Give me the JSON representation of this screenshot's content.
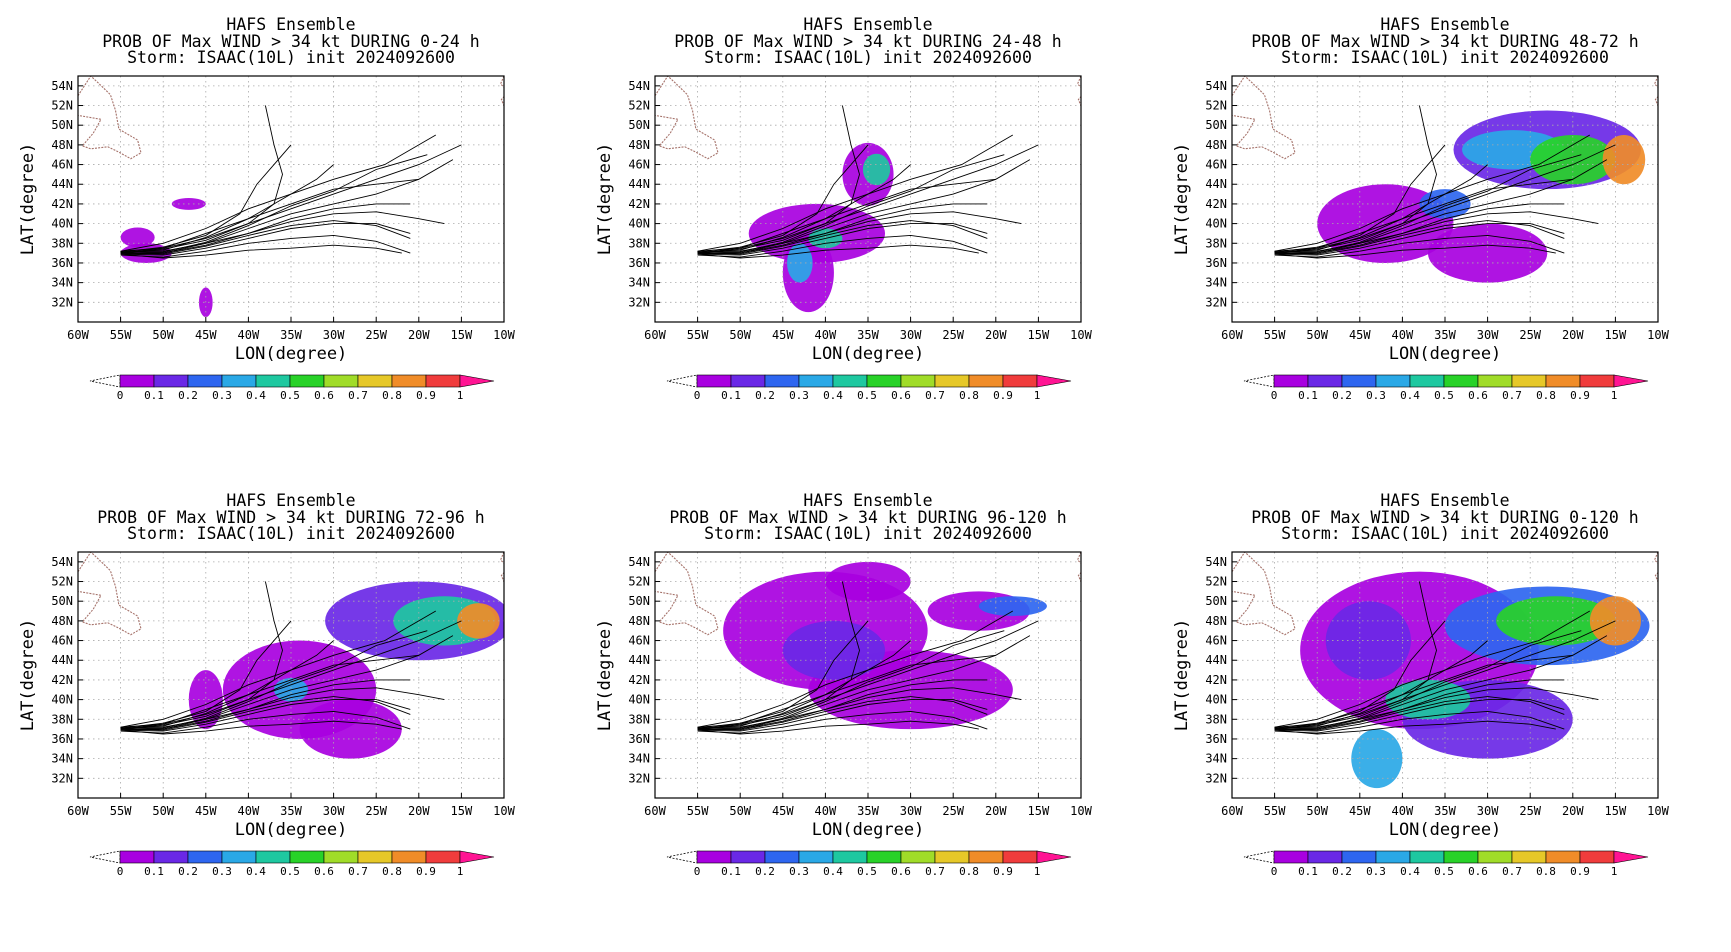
{
  "figure": {
    "model": "HAFS Ensemble",
    "storm_line": "Storm: ISAAC(10L) init 2024092600",
    "xlabel": "LON(degree)",
    "ylabel": "LAT(degree)",
    "lon_ticks": [
      "60W",
      "55W",
      "50W",
      "45W",
      "40W",
      "35W",
      "30W",
      "25W",
      "20W",
      "15W",
      "10W"
    ],
    "lat_ticks": [
      "54N",
      "52N",
      "50N",
      "48N",
      "46N",
      "44N",
      "42N",
      "40N",
      "38N",
      "36N",
      "34N",
      "32N"
    ],
    "colorbar_labels": [
      "0",
      "0.1",
      "0.2",
      "0.3",
      "0.4",
      "0.5",
      "0.6",
      "0.7",
      "0.8",
      "0.9",
      "1"
    ],
    "colors": {
      "bins": [
        "#a800e0",
        "#6a28e6",
        "#2e66f0",
        "#2aa8e6",
        "#1ec8a0",
        "#28d228",
        "#a0dc28",
        "#e6c828",
        "#f08c28",
        "#f03c3c"
      ],
      "over": "#ff1493",
      "coast": "#a5726a",
      "tracks": "#000000",
      "grid": "#aaaaaa"
    }
  },
  "chart_data": [
    {
      "type": "heatmap",
      "title": "HAFS Ensemble",
      "subtitle": "PROB OF Max WIND > 34 kt DURING  0-24 h",
      "storm": "Storm: ISAAC(10L) init 2024092600",
      "xlabel": "LON(degree)",
      "ylabel": "LAT(degree)",
      "xlim": [
        -60,
        -10
      ],
      "ylim": [
        30,
        55
      ],
      "blobs": [
        {
          "lon": -52,
          "lat": 37,
          "rx": 3,
          "ry": 1,
          "p": 0.05
        },
        {
          "lon": -53,
          "lat": 38.6,
          "rx": 2,
          "ry": 1,
          "p": 0.05
        },
        {
          "lon": -47,
          "lat": 42,
          "rx": 2,
          "ry": 0.6,
          "p": 0.05
        },
        {
          "lon": -45,
          "lat": 32,
          "rx": 0.8,
          "ry": 1.5,
          "p": 0.05
        }
      ]
    },
    {
      "type": "heatmap",
      "title": "HAFS Ensemble",
      "subtitle": "PROB OF Max WIND > 34 kt DURING 24-48 h",
      "storm": "Storm: ISAAC(10L) init 2024092600",
      "xlabel": "LON(degree)",
      "ylabel": "LAT(degree)",
      "xlim": [
        -60,
        -10
      ],
      "ylim": [
        30,
        55
      ],
      "blobs": [
        {
          "lon": -41,
          "lat": 39,
          "rx": 8,
          "ry": 3,
          "p": 0.05
        },
        {
          "lon": -42,
          "lat": 35,
          "rx": 3,
          "ry": 4,
          "p": 0.05
        },
        {
          "lon": -35,
          "lat": 45,
          "rx": 3,
          "ry": 3.2,
          "p": 0.08
        },
        {
          "lon": -34,
          "lat": 45.5,
          "rx": 1.6,
          "ry": 1.6,
          "p": 0.45
        },
        {
          "lon": -43,
          "lat": 36,
          "rx": 1.5,
          "ry": 2,
          "p": 0.3
        },
        {
          "lon": -40,
          "lat": 38.5,
          "rx": 2,
          "ry": 1,
          "p": 0.45
        }
      ]
    },
    {
      "type": "heatmap",
      "title": "HAFS Ensemble",
      "subtitle": "PROB OF Max WIND > 34 kt DURING 48-72 h",
      "storm": "Storm: ISAAC(10L) init 2024092600",
      "xlabel": "LON(degree)",
      "ylabel": "LAT(degree)",
      "xlim": [
        -60,
        -10
      ],
      "ylim": [
        30,
        55
      ],
      "blobs": [
        {
          "lon": -42,
          "lat": 40,
          "rx": 8,
          "ry": 4,
          "p": 0.05
        },
        {
          "lon": -30,
          "lat": 37,
          "rx": 7,
          "ry": 3,
          "p": 0.05
        },
        {
          "lon": -23,
          "lat": 47.5,
          "rx": 11,
          "ry": 4,
          "p": 0.12
        },
        {
          "lon": -27,
          "lat": 47.5,
          "rx": 6,
          "ry": 2,
          "p": 0.3
        },
        {
          "lon": -20,
          "lat": 46.5,
          "rx": 5,
          "ry": 2.5,
          "p": 0.5
        },
        {
          "lon": -14,
          "lat": 46.5,
          "rx": 2.5,
          "ry": 2.5,
          "p": 0.8
        },
        {
          "lon": -35,
          "lat": 42,
          "rx": 3,
          "ry": 1.5,
          "p": 0.25
        }
      ]
    },
    {
      "type": "heatmap",
      "title": "HAFS Ensemble",
      "subtitle": "PROB OF Max WIND > 34 kt DURING 72-96 h",
      "storm": "Storm: ISAAC(10L) init 2024092600",
      "xlabel": "LON(degree)",
      "ylabel": "LAT(degree)",
      "xlim": [
        -60,
        -10
      ],
      "ylim": [
        30,
        55
      ],
      "blobs": [
        {
          "lon": -34,
          "lat": 41,
          "rx": 9,
          "ry": 5,
          "p": 0.05
        },
        {
          "lon": -28,
          "lat": 37,
          "rx": 6,
          "ry": 3,
          "p": 0.05
        },
        {
          "lon": -20,
          "lat": 48,
          "rx": 11,
          "ry": 4,
          "p": 0.12
        },
        {
          "lon": -17,
          "lat": 48,
          "rx": 6,
          "ry": 2.5,
          "p": 0.45
        },
        {
          "lon": -13,
          "lat": 48,
          "rx": 2.5,
          "ry": 1.8,
          "p": 0.8
        },
        {
          "lon": -35,
          "lat": 41,
          "rx": 2,
          "ry": 1.2,
          "p": 0.3
        },
        {
          "lon": -45,
          "lat": 40,
          "rx": 2,
          "ry": 3,
          "p": 0.05
        }
      ]
    },
    {
      "type": "heatmap",
      "title": "HAFS Ensemble",
      "subtitle": "PROB OF Max WIND > 34 kt DURING 96-120 h",
      "storm": "Storm: ISAAC(10L) init 2024092600",
      "xlabel": "LON(degree)",
      "ylabel": "LAT(degree)",
      "xlim": [
        -60,
        -10
      ],
      "ylim": [
        30,
        55
      ],
      "blobs": [
        {
          "lon": -40,
          "lat": 47,
          "rx": 12,
          "ry": 6,
          "p": 0.05
        },
        {
          "lon": -30,
          "lat": 41,
          "rx": 12,
          "ry": 4,
          "p": 0.05
        },
        {
          "lon": -22,
          "lat": 49,
          "rx": 6,
          "ry": 2,
          "p": 0.05
        },
        {
          "lon": -39,
          "lat": 45,
          "rx": 6,
          "ry": 3,
          "p": 0.15
        },
        {
          "lon": -18,
          "lat": 49.5,
          "rx": 4,
          "ry": 1,
          "p": 0.25
        },
        {
          "lon": -35,
          "lat": 52,
          "rx": 5,
          "ry": 2,
          "p": 0.05
        }
      ]
    },
    {
      "type": "heatmap",
      "title": "HAFS Ensemble",
      "subtitle": "PROB OF Max WIND > 34 kt DURING 0-120 h",
      "storm": "Storm: ISAAC(10L) init 2024092600",
      "xlabel": "LON(degree)",
      "ylabel": "LAT(degree)",
      "xlim": [
        -60,
        -10
      ],
      "ylim": [
        30,
        55
      ],
      "blobs": [
        {
          "lon": -38,
          "lat": 45,
          "rx": 14,
          "ry": 8,
          "p": 0.05
        },
        {
          "lon": -30,
          "lat": 38,
          "rx": 10,
          "ry": 4,
          "p": 0.1
        },
        {
          "lon": -23,
          "lat": 47.5,
          "rx": 12,
          "ry": 4,
          "p": 0.2
        },
        {
          "lon": -22,
          "lat": 48,
          "rx": 7,
          "ry": 2.5,
          "p": 0.5
        },
        {
          "lon": -15,
          "lat": 48,
          "rx": 3,
          "ry": 2.5,
          "p": 0.85
        },
        {
          "lon": -37,
          "lat": 40,
          "rx": 5,
          "ry": 2,
          "p": 0.45
        },
        {
          "lon": -43,
          "lat": 34,
          "rx": 3,
          "ry": 3,
          "p": 0.3
        },
        {
          "lon": -44,
          "lat": 46,
          "rx": 5,
          "ry": 4,
          "p": 0.15
        }
      ]
    }
  ],
  "tracks": [
    [
      [
        -55,
        37.2
      ],
      [
        -50,
        37.5
      ],
      [
        -45,
        38.5
      ],
      [
        -40,
        40
      ],
      [
        -35,
        41.5
      ],
      [
        -30,
        43
      ],
      [
        -25,
        44.5
      ],
      [
        -20,
        46
      ],
      [
        -15,
        48
      ]
    ],
    [
      [
        -55,
        37.1
      ],
      [
        -50,
        37.2
      ],
      [
        -45,
        38
      ],
      [
        -40,
        39.5
      ],
      [
        -35,
        41
      ],
      [
        -30,
        42
      ],
      [
        -25,
        43
      ],
      [
        -20,
        44.5
      ],
      [
        -16,
        46.5
      ]
    ],
    [
      [
        -55,
        37
      ],
      [
        -50,
        37
      ],
      [
        -45,
        37.8
      ],
      [
        -40,
        39
      ],
      [
        -35,
        40.5
      ],
      [
        -30,
        41.5
      ],
      [
        -25,
        42
      ],
      [
        -21,
        42
      ]
    ],
    [
      [
        -55,
        36.9
      ],
      [
        -50,
        36.8
      ],
      [
        -45,
        37.5
      ],
      [
        -40,
        38.5
      ],
      [
        -35,
        39.5
      ],
      [
        -30,
        40
      ],
      [
        -25,
        40
      ],
      [
        -21,
        39
      ]
    ],
    [
      [
        -55,
        36.8
      ],
      [
        -50,
        36.6
      ],
      [
        -45,
        37.2
      ],
      [
        -40,
        38
      ],
      [
        -35,
        38.5
      ],
      [
        -30,
        38.8
      ],
      [
        -25,
        38.2
      ],
      [
        -21,
        37
      ]
    ],
    [
      [
        -55,
        37
      ],
      [
        -50,
        37.4
      ],
      [
        -45,
        38.3
      ],
      [
        -40,
        40
      ],
      [
        -37,
        42
      ],
      [
        -36,
        45
      ],
      [
        -37,
        48
      ],
      [
        -38,
        52
      ]
    ],
    [
      [
        -55,
        37.1
      ],
      [
        -50,
        37.6
      ],
      [
        -45,
        38.8
      ],
      [
        -41,
        41
      ],
      [
        -39,
        44
      ],
      [
        -37,
        46
      ],
      [
        -35,
        48
      ]
    ],
    [
      [
        -55,
        37.2
      ],
      [
        -50,
        38
      ],
      [
        -45,
        39.5
      ],
      [
        -40,
        41.5
      ],
      [
        -35,
        43
      ],
      [
        -30,
        44.5
      ],
      [
        -24,
        46
      ],
      [
        -18,
        49
      ]
    ],
    [
      [
        -55,
        37
      ],
      [
        -50,
        37.5
      ],
      [
        -45,
        39
      ],
      [
        -40,
        40.5
      ],
      [
        -35,
        42
      ],
      [
        -30,
        43.5
      ],
      [
        -25,
        44
      ],
      [
        -20,
        44.5
      ]
    ],
    [
      [
        -55,
        36.9
      ],
      [
        -50,
        37
      ],
      [
        -45,
        38
      ],
      [
        -40,
        39
      ],
      [
        -35,
        40.2
      ],
      [
        -30,
        41
      ],
      [
        -25,
        41.2
      ],
      [
        -20,
        40.5
      ],
      [
        -17,
        40
      ]
    ],
    [
      [
        -55,
        37
      ],
      [
        -50,
        36.9
      ],
      [
        -45,
        37.7
      ],
      [
        -40,
        38.8
      ],
      [
        -35,
        39.8
      ],
      [
        -30,
        40.3
      ],
      [
        -25,
        39.8
      ],
      [
        -21,
        38.5
      ]
    ],
    [
      [
        -55,
        37.1
      ],
      [
        -50,
        37.3
      ],
      [
        -45,
        38.6
      ],
      [
        -40,
        40.5
      ],
      [
        -36,
        42.5
      ],
      [
        -32,
        44.5
      ],
      [
        -30,
        46
      ]
    ],
    [
      [
        -55,
        37
      ],
      [
        -50,
        37.1
      ],
      [
        -45,
        38.1
      ],
      [
        -40,
        39.8
      ],
      [
        -35,
        41.8
      ],
      [
        -30,
        43.3
      ],
      [
        -25,
        45.5
      ],
      [
        -19,
        47
      ]
    ],
    [
      [
        -55,
        36.9
      ],
      [
        -50,
        36.5
      ],
      [
        -45,
        36.8
      ],
      [
        -40,
        37.3
      ],
      [
        -35,
        37.5
      ],
      [
        -30,
        37.8
      ],
      [
        -25,
        37.5
      ],
      [
        -22,
        37
      ]
    ]
  ]
}
